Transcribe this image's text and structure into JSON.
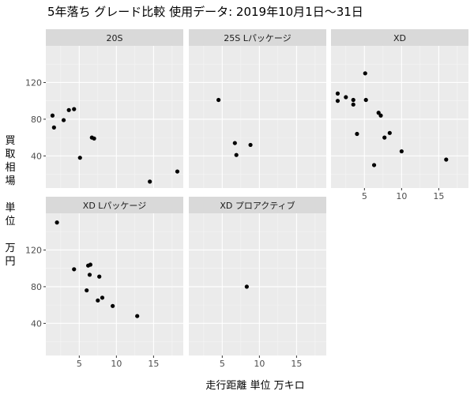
{
  "chart_data": {
    "type": "scatter",
    "title": "5年落ち グレード比較 使用データ: 2019年10月1日～31日",
    "xlabel": "走行距離 単位 万キロ",
    "ylabel_lines": [
      "買",
      "取",
      "相",
      "場",
      "",
      "単",
      "位",
      "",
      "万",
      "円"
    ],
    "xlim": [
      0.5,
      19
    ],
    "ylim": [
      5,
      160
    ],
    "xticks": [
      5,
      10,
      15
    ],
    "yticks": [
      40,
      80,
      120
    ],
    "grid": true,
    "facets": [
      {
        "name": "20S",
        "points": [
          {
            "x": 1.4,
            "y": 84
          },
          {
            "x": 1.6,
            "y": 71
          },
          {
            "x": 2.9,
            "y": 79
          },
          {
            "x": 3.6,
            "y": 90
          },
          {
            "x": 4.3,
            "y": 91
          },
          {
            "x": 5.1,
            "y": 38
          },
          {
            "x": 6.7,
            "y": 60
          },
          {
            "x": 7.0,
            "y": 59
          },
          {
            "x": 14.5,
            "y": 12
          },
          {
            "x": 18.2,
            "y": 23
          }
        ]
      },
      {
        "name": "25S Lパッケージ",
        "points": [
          {
            "x": 4.5,
            "y": 101
          },
          {
            "x": 6.7,
            "y": 54
          },
          {
            "x": 6.9,
            "y": 41
          },
          {
            "x": 8.8,
            "y": 52
          }
        ]
      },
      {
        "name": "XD",
        "points": [
          {
            "x": 1.4,
            "y": 108
          },
          {
            "x": 1.4,
            "y": 100
          },
          {
            "x": 2.5,
            "y": 104
          },
          {
            "x": 3.5,
            "y": 101
          },
          {
            "x": 3.5,
            "y": 96
          },
          {
            "x": 4.0,
            "y": 64
          },
          {
            "x": 5.1,
            "y": 130
          },
          {
            "x": 5.2,
            "y": 101
          },
          {
            "x": 6.3,
            "y": 30
          },
          {
            "x": 6.9,
            "y": 87
          },
          {
            "x": 7.2,
            "y": 84
          },
          {
            "x": 7.7,
            "y": 60
          },
          {
            "x": 8.4,
            "y": 65
          },
          {
            "x": 10.0,
            "y": 45
          },
          {
            "x": 16.0,
            "y": 36
          }
        ]
      },
      {
        "name": "XD Lパッケージ",
        "points": [
          {
            "x": 2.0,
            "y": 150
          },
          {
            "x": 4.3,
            "y": 99
          },
          {
            "x": 6.2,
            "y": 103
          },
          {
            "x": 6.4,
            "y": 93
          },
          {
            "x": 6.5,
            "y": 104
          },
          {
            "x": 6.0,
            "y": 76
          },
          {
            "x": 7.7,
            "y": 91
          },
          {
            "x": 7.5,
            "y": 65
          },
          {
            "x": 8.1,
            "y": 68
          },
          {
            "x": 9.5,
            "y": 59
          },
          {
            "x": 12.8,
            "y": 48
          }
        ]
      },
      {
        "name": "XD プロアクティブ",
        "points": [
          {
            "x": 8.3,
            "y": 80
          }
        ]
      }
    ]
  }
}
